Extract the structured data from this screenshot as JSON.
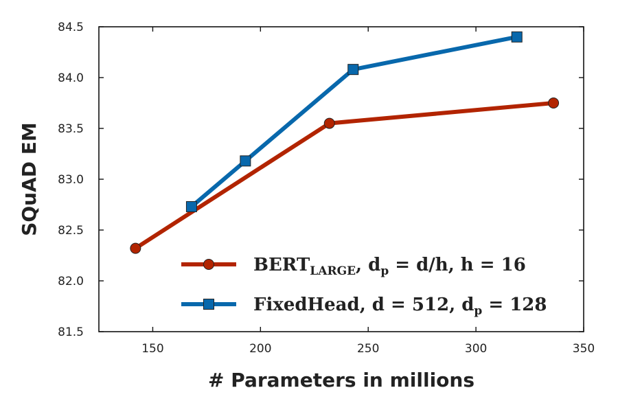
{
  "chart_data": {
    "type": "line",
    "xlabel": "# Parameters in millions",
    "ylabel": "SQuAD EM",
    "xlim": [
      125,
      350
    ],
    "ylim": [
      81.5,
      84.5
    ],
    "xticks": [
      150,
      200,
      250,
      300,
      350
    ],
    "yticks": [
      81.5,
      82.0,
      82.5,
      83.0,
      83.5,
      84.0,
      84.5
    ],
    "xtick_labels": [
      "150",
      "200",
      "250",
      "300",
      "350"
    ],
    "ytick_labels": [
      "81.5",
      "82.0",
      "82.5",
      "83.0",
      "83.5",
      "84.0",
      "84.5"
    ],
    "grid": false,
    "legend_position": "bottom-right",
    "series": [
      {
        "name": "BERT_LARGE, d_p = d/h, h = 16",
        "legend_parts": {
          "main": "BERT",
          "sub": "LARGE",
          "rest": ", d",
          "sub2": "p",
          "rest2": " = d/h, h = 16"
        },
        "marker": "circle",
        "color": "#b22400",
        "x": [
          142,
          232,
          336
        ],
        "y": [
          82.32,
          83.55,
          83.75
        ]
      },
      {
        "name": "FixedHead, d = 512, d_p = 128",
        "legend_parts": {
          "main": "FixedHead, d = 512, d",
          "sub": "p",
          "rest": " = 128"
        },
        "marker": "square",
        "color": "#0868ac",
        "x": [
          168,
          193,
          243,
          319
        ],
        "y": [
          82.73,
          83.18,
          84.08,
          84.4
        ]
      }
    ]
  }
}
